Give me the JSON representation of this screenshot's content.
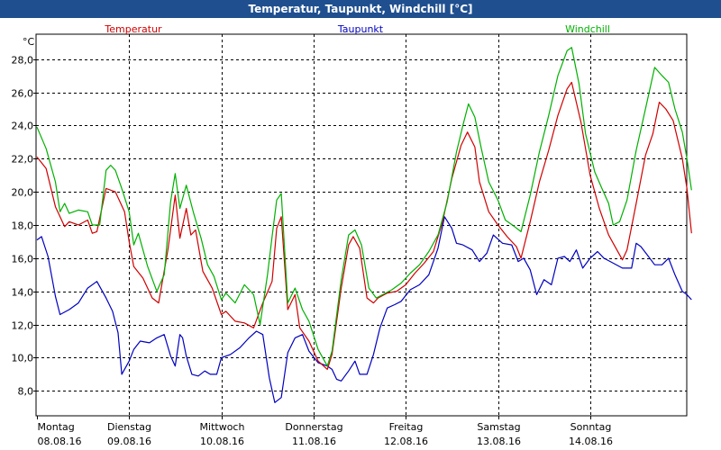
{
  "window": {
    "title": "Temperatur, Taupunkt, Windchill [°C]"
  },
  "colors": {
    "titlebar": "#1f4f8f",
    "temperatur": "#d00000",
    "taupunkt": "#0000c0",
    "windchill": "#00b000",
    "grid": "#000000"
  },
  "chart_data": {
    "type": "line",
    "title": "Temperatur, Taupunkt, Windchill [°C]",
    "ylabel": "°C",
    "xlabel": "",
    "ylim": [
      6.5,
      29.5
    ],
    "xlim": [
      0,
      7.1
    ],
    "grid": true,
    "legend": "top",
    "yticks": [
      8,
      10,
      12,
      14,
      16,
      18,
      20,
      22,
      24,
      26,
      28
    ],
    "ytick_labels": [
      "8,0",
      "10,0",
      "12,0",
      "14,0",
      "16,0",
      "18,0",
      "20,0",
      "22,0",
      "24,0",
      "26,0",
      "28,0"
    ],
    "xticks": [
      {
        "x": 0,
        "day": "Montag",
        "date": "08.08.16"
      },
      {
        "x": 1,
        "day": "Dienstag",
        "date": "09.08.16"
      },
      {
        "x": 2,
        "day": "Mittwoch",
        "date": "10.08.16"
      },
      {
        "x": 3,
        "day": "Donnerstag",
        "date": "11.08.16"
      },
      {
        "x": 4,
        "day": "Freitag",
        "date": "12.08.16"
      },
      {
        "x": 5,
        "day": "Samstag",
        "date": "13.08.16"
      },
      {
        "x": 6,
        "day": "Sonntag",
        "date": "14.08.16"
      }
    ],
    "series": [
      {
        "name": "Temperatur",
        "color": "#d00000",
        "points": [
          [
            0,
            22.1
          ],
          [
            0.1,
            21.4
          ],
          [
            0.2,
            19.1
          ],
          [
            0.3,
            17.9
          ],
          [
            0.35,
            18.2
          ],
          [
            0.45,
            18.0
          ],
          [
            0.55,
            18.3
          ],
          [
            0.6,
            17.5
          ],
          [
            0.65,
            17.6
          ],
          [
            0.75,
            20.2
          ],
          [
            0.85,
            20.0
          ],
          [
            0.95,
            18.8
          ],
          [
            1.0,
            17.0
          ],
          [
            1.05,
            15.5
          ],
          [
            1.15,
            14.8
          ],
          [
            1.25,
            13.6
          ],
          [
            1.32,
            13.3
          ],
          [
            1.42,
            16.5
          ],
          [
            1.5,
            19.8
          ],
          [
            1.55,
            17.2
          ],
          [
            1.62,
            19.0
          ],
          [
            1.67,
            17.4
          ],
          [
            1.72,
            17.7
          ],
          [
            1.8,
            15.2
          ],
          [
            1.9,
            14.2
          ],
          [
            2.0,
            12.6
          ],
          [
            2.05,
            12.8
          ],
          [
            2.15,
            12.2
          ],
          [
            2.25,
            12.1
          ],
          [
            2.35,
            11.8
          ],
          [
            2.45,
            13.3
          ],
          [
            2.55,
            14.6
          ],
          [
            2.6,
            17.8
          ],
          [
            2.65,
            18.5
          ],
          [
            2.72,
            12.9
          ],
          [
            2.8,
            13.8
          ],
          [
            2.85,
            11.8
          ],
          [
            2.95,
            11.0
          ],
          [
            3.05,
            9.8
          ],
          [
            3.15,
            9.3
          ],
          [
            3.2,
            10.2
          ],
          [
            3.3,
            14.2
          ],
          [
            3.38,
            16.8
          ],
          [
            3.43,
            17.3
          ],
          [
            3.5,
            16.6
          ],
          [
            3.58,
            13.6
          ],
          [
            3.65,
            13.3
          ],
          [
            3.7,
            13.6
          ],
          [
            3.8,
            13.9
          ],
          [
            3.9,
            14.0
          ],
          [
            4.0,
            14.4
          ],
          [
            4.1,
            15.1
          ],
          [
            4.2,
            15.7
          ],
          [
            4.3,
            16.4
          ],
          [
            4.4,
            18.2
          ],
          [
            4.5,
            20.8
          ],
          [
            4.6,
            22.8
          ],
          [
            4.67,
            23.6
          ],
          [
            4.75,
            22.7
          ],
          [
            4.8,
            20.6
          ],
          [
            4.9,
            18.8
          ],
          [
            5.0,
            18.0
          ],
          [
            5.1,
            17.3
          ],
          [
            5.2,
            16.7
          ],
          [
            5.25,
            16.0
          ],
          [
            5.35,
            18.2
          ],
          [
            5.45,
            20.6
          ],
          [
            5.55,
            22.5
          ],
          [
            5.65,
            24.6
          ],
          [
            5.75,
            26.2
          ],
          [
            5.8,
            26.6
          ],
          [
            5.9,
            24.2
          ],
          [
            6.0,
            21.0
          ],
          [
            6.1,
            19.0
          ],
          [
            6.2,
            17.4
          ],
          [
            6.25,
            16.9
          ],
          [
            6.35,
            15.9
          ],
          [
            6.4,
            16.5
          ],
          [
            6.5,
            19.3
          ],
          [
            6.6,
            22.2
          ],
          [
            6.68,
            23.5
          ],
          [
            6.75,
            25.4
          ],
          [
            6.82,
            25.0
          ],
          [
            6.9,
            24.3
          ],
          [
            7.0,
            22.0
          ],
          [
            7.05,
            20.2
          ],
          [
            7.1,
            17.5
          ]
        ]
      },
      {
        "name": "Taupunkt",
        "color": "#0000c0",
        "points": [
          [
            0,
            17.1
          ],
          [
            0.05,
            17.3
          ],
          [
            0.12,
            16.1
          ],
          [
            0.2,
            13.7
          ],
          [
            0.25,
            12.6
          ],
          [
            0.35,
            12.9
          ],
          [
            0.45,
            13.3
          ],
          [
            0.55,
            14.2
          ],
          [
            0.65,
            14.6
          ],
          [
            0.75,
            13.6
          ],
          [
            0.82,
            12.8
          ],
          [
            0.88,
            11.5
          ],
          [
            0.92,
            9.0
          ],
          [
            1.0,
            9.8
          ],
          [
            1.05,
            10.5
          ],
          [
            1.12,
            11.0
          ],
          [
            1.22,
            10.9
          ],
          [
            1.3,
            11.2
          ],
          [
            1.38,
            11.4
          ],
          [
            1.45,
            10.1
          ],
          [
            1.5,
            9.5
          ],
          [
            1.55,
            11.4
          ],
          [
            1.58,
            11.2
          ],
          [
            1.62,
            10.1
          ],
          [
            1.68,
            9.0
          ],
          [
            1.75,
            8.9
          ],
          [
            1.82,
            9.2
          ],
          [
            1.88,
            9.0
          ],
          [
            1.95,
            9.0
          ],
          [
            2.0,
            10.0
          ],
          [
            2.1,
            10.2
          ],
          [
            2.2,
            10.6
          ],
          [
            2.3,
            11.2
          ],
          [
            2.38,
            11.6
          ],
          [
            2.45,
            11.4
          ],
          [
            2.52,
            8.8
          ],
          [
            2.58,
            7.3
          ],
          [
            2.65,
            7.6
          ],
          [
            2.72,
            10.3
          ],
          [
            2.8,
            11.2
          ],
          [
            2.88,
            11.4
          ],
          [
            2.95,
            10.4
          ],
          [
            3.05,
            9.7
          ],
          [
            3.15,
            9.5
          ],
          [
            3.2,
            9.3
          ],
          [
            3.25,
            8.7
          ],
          [
            3.3,
            8.6
          ],
          [
            3.38,
            9.2
          ],
          [
            3.45,
            9.8
          ],
          [
            3.5,
            9.0
          ],
          [
            3.58,
            9.0
          ],
          [
            3.65,
            10.2
          ],
          [
            3.72,
            11.8
          ],
          [
            3.8,
            13.0
          ],
          [
            3.88,
            13.2
          ],
          [
            3.95,
            13.4
          ],
          [
            4.05,
            14.1
          ],
          [
            4.15,
            14.4
          ],
          [
            4.25,
            15.0
          ],
          [
            4.35,
            16.6
          ],
          [
            4.42,
            18.5
          ],
          [
            4.5,
            17.8
          ],
          [
            4.55,
            16.9
          ],
          [
            4.62,
            16.8
          ],
          [
            4.72,
            16.5
          ],
          [
            4.8,
            15.8
          ],
          [
            4.88,
            16.3
          ],
          [
            4.95,
            17.4
          ],
          [
            5.05,
            16.9
          ],
          [
            5.15,
            16.8
          ],
          [
            5.22,
            15.8
          ],
          [
            5.28,
            16.0
          ],
          [
            5.35,
            15.3
          ],
          [
            5.42,
            13.8
          ],
          [
            5.5,
            14.7
          ],
          [
            5.58,
            14.4
          ],
          [
            5.65,
            16.0
          ],
          [
            5.72,
            16.1
          ],
          [
            5.78,
            15.8
          ],
          [
            5.85,
            16.5
          ],
          [
            5.92,
            15.4
          ],
          [
            6.0,
            16.0
          ],
          [
            6.08,
            16.4
          ],
          [
            6.15,
            16.0
          ],
          [
            6.25,
            15.7
          ],
          [
            6.35,
            15.4
          ],
          [
            6.45,
            15.4
          ],
          [
            6.5,
            16.9
          ],
          [
            6.55,
            16.7
          ],
          [
            6.62,
            16.2
          ],
          [
            6.7,
            15.6
          ],
          [
            6.78,
            15.6
          ],
          [
            6.85,
            16.0
          ],
          [
            6.92,
            15.0
          ],
          [
            7.0,
            14.0
          ],
          [
            7.05,
            13.8
          ],
          [
            7.1,
            13.5
          ]
        ]
      },
      {
        "name": "Windchill",
        "color": "#00b000",
        "points": [
          [
            0,
            23.9
          ],
          [
            0.1,
            22.6
          ],
          [
            0.2,
            20.6
          ],
          [
            0.25,
            18.8
          ],
          [
            0.3,
            19.3
          ],
          [
            0.35,
            18.7
          ],
          [
            0.45,
            18.9
          ],
          [
            0.55,
            18.8
          ],
          [
            0.6,
            18.0
          ],
          [
            0.68,
            18.0
          ],
          [
            0.75,
            21.3
          ],
          [
            0.8,
            21.6
          ],
          [
            0.85,
            21.3
          ],
          [
            0.92,
            20.2
          ],
          [
            1.0,
            18.8
          ],
          [
            1.05,
            16.8
          ],
          [
            1.1,
            17.5
          ],
          [
            1.2,
            15.5
          ],
          [
            1.3,
            14.0
          ],
          [
            1.38,
            15.0
          ],
          [
            1.45,
            19.4
          ],
          [
            1.5,
            21.1
          ],
          [
            1.55,
            19.0
          ],
          [
            1.62,
            20.4
          ],
          [
            1.7,
            18.7
          ],
          [
            1.78,
            17.2
          ],
          [
            1.85,
            15.6
          ],
          [
            1.92,
            14.9
          ],
          [
            2.0,
            13.5
          ],
          [
            2.05,
            13.9
          ],
          [
            2.15,
            13.3
          ],
          [
            2.25,
            14.4
          ],
          [
            2.35,
            13.8
          ],
          [
            2.42,
            12.0
          ],
          [
            2.5,
            15.0
          ],
          [
            2.55,
            17.3
          ],
          [
            2.6,
            19.5
          ],
          [
            2.65,
            19.9
          ],
          [
            2.72,
            13.3
          ],
          [
            2.8,
            14.2
          ],
          [
            2.88,
            12.9
          ],
          [
            2.95,
            12.2
          ],
          [
            3.05,
            10.5
          ],
          [
            3.15,
            9.5
          ],
          [
            3.2,
            10.4
          ],
          [
            3.3,
            14.7
          ],
          [
            3.38,
            17.4
          ],
          [
            3.45,
            17.7
          ],
          [
            3.52,
            16.8
          ],
          [
            3.6,
            14.2
          ],
          [
            3.68,
            13.6
          ],
          [
            3.75,
            13.8
          ],
          [
            3.85,
            14.1
          ],
          [
            3.95,
            14.5
          ],
          [
            4.05,
            15.1
          ],
          [
            4.15,
            15.6
          ],
          [
            4.25,
            16.4
          ],
          [
            4.35,
            17.4
          ],
          [
            4.45,
            19.4
          ],
          [
            4.55,
            22.4
          ],
          [
            4.62,
            24.0
          ],
          [
            4.68,
            25.3
          ],
          [
            4.75,
            24.5
          ],
          [
            4.82,
            22.6
          ],
          [
            4.9,
            20.6
          ],
          [
            5.0,
            19.5
          ],
          [
            5.08,
            18.3
          ],
          [
            5.18,
            17.9
          ],
          [
            5.25,
            17.6
          ],
          [
            5.35,
            19.8
          ],
          [
            5.45,
            22.4
          ],
          [
            5.55,
            24.6
          ],
          [
            5.65,
            27.0
          ],
          [
            5.75,
            28.5
          ],
          [
            5.8,
            28.7
          ],
          [
            5.88,
            26.5
          ],
          [
            5.95,
            23.5
          ],
          [
            6.05,
            21.2
          ],
          [
            6.12,
            20.3
          ],
          [
            6.2,
            19.3
          ],
          [
            6.25,
            18.0
          ],
          [
            6.32,
            18.2
          ],
          [
            6.4,
            19.5
          ],
          [
            6.5,
            22.5
          ],
          [
            6.6,
            25.0
          ],
          [
            6.7,
            27.5
          ],
          [
            6.78,
            27.0
          ],
          [
            6.85,
            26.6
          ],
          [
            6.92,
            25.0
          ],
          [
            7.0,
            23.6
          ],
          [
            7.05,
            22.0
          ],
          [
            7.1,
            20.1
          ]
        ]
      }
    ]
  }
}
